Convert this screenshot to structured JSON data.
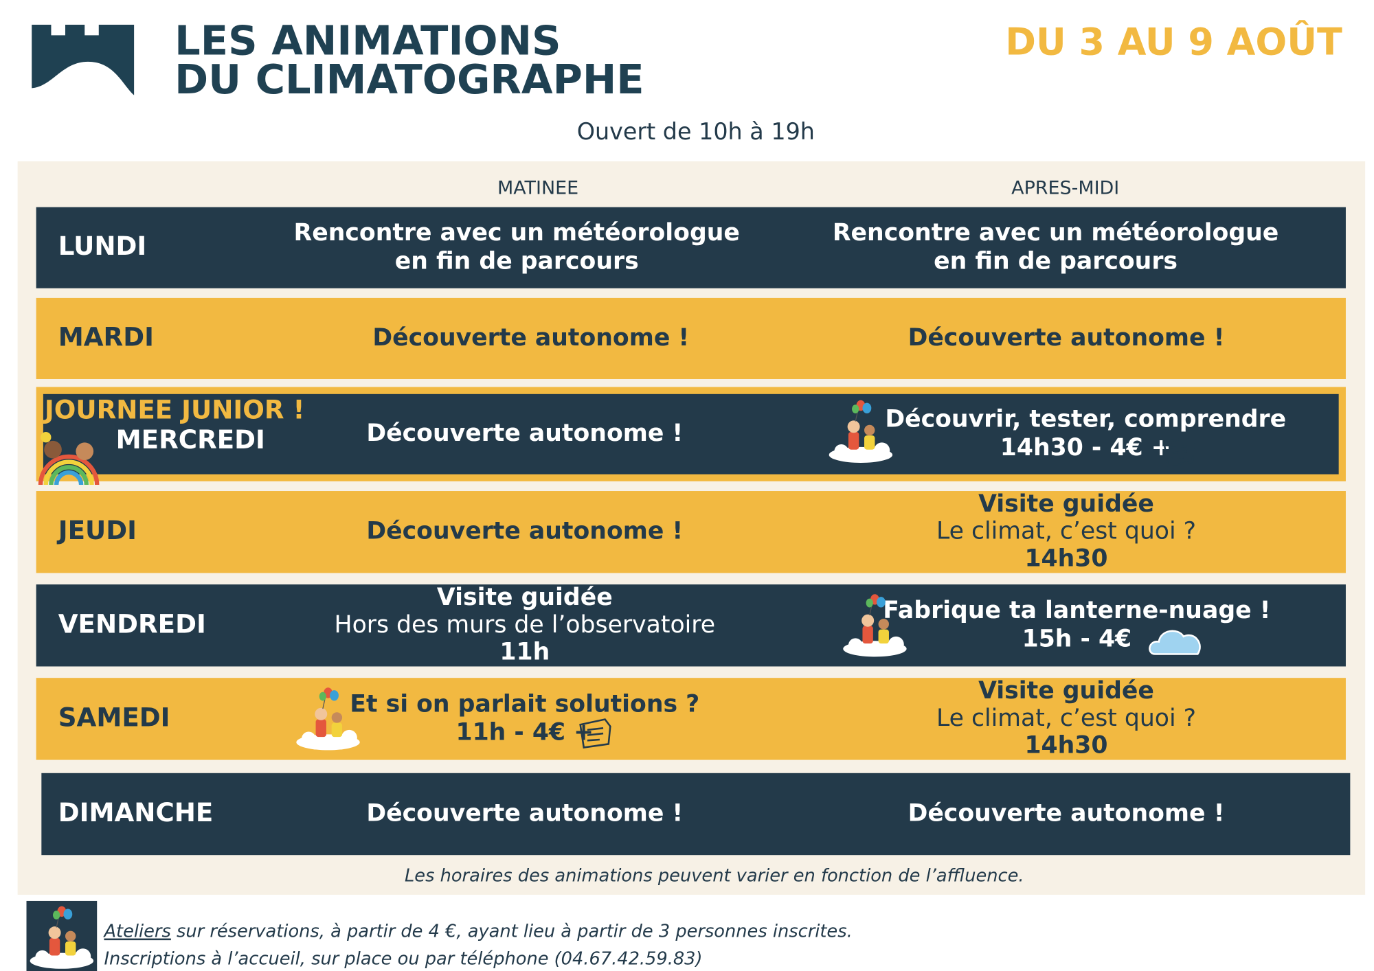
{
  "header": {
    "title_lines": [
      "LES ANIMATIONS",
      "DU CLIMATOGRAPHE"
    ],
    "dates": "DU 3 AU 9 AOÛT",
    "hours": "Ouvert de 10h à 19h"
  },
  "columns": [
    "MATINEE",
    "APRES-MIDI"
  ],
  "rows": [
    {
      "day": "LUNDI",
      "color": "#233a4a",
      "morning": [
        "Rencontre avec un météorologue",
        "en fin de parcours"
      ],
      "afternoon": [
        "Rencontre avec un météorologue",
        "en fin de parcours"
      ]
    },
    {
      "day": "MARDI",
      "color": "#f2b941",
      "morning": [
        "Découverte autonome !"
      ],
      "afternoon": [
        "Découverte autonome !"
      ]
    },
    {
      "day": "MERCREDI",
      "tag": "JOURNEE JUNIOR !",
      "color": "#233a4a",
      "morning": [
        "Découverte autonome !"
      ],
      "afternoon": [
        "Découvrir, tester, comprendre",
        "14h30 - 4€ +"
      ]
    },
    {
      "day": "JEUDI",
      "color": "#f2b941",
      "morning": [
        "Découverte autonome !"
      ],
      "afternoon": [
        "Visite guidée",
        "Le climat, c’est quoi ?",
        "14h30"
      ]
    },
    {
      "day": "VENDREDI",
      "color": "#233a4a",
      "morning": [
        "Visite guidée",
        "Hors des murs de l’observatoire",
        "11h"
      ],
      "afternoon": [
        "Fabrique ta lanterne-nuage !",
        "15h - 4€"
      ]
    },
    {
      "day": "SAMEDI",
      "color": "#f2b941",
      "morning": [
        "Et si on parlait solutions ?",
        "11h - 4€ +"
      ],
      "afternoon": [
        "Visite guidée",
        "Le climat, c’est quoi ?",
        "14h30"
      ]
    },
    {
      "day": "DIMANCHE",
      "color": "#233a4a",
      "morning": [
        "Découverte autonome !"
      ],
      "afternoon": [
        "Découverte autonome !"
      ]
    }
  ],
  "note": "Les horaires des animations peuvent varier en fonction de l’affluence.",
  "footer": {
    "link": "Ateliers",
    "line1": " sur réservations, à partir de 4 €, ayant lieu à partir de 3 personnes inscrites.",
    "line2": "Inscriptions à l’accueil, sur place ou par téléphone (04.67.42.59.83)"
  }
}
